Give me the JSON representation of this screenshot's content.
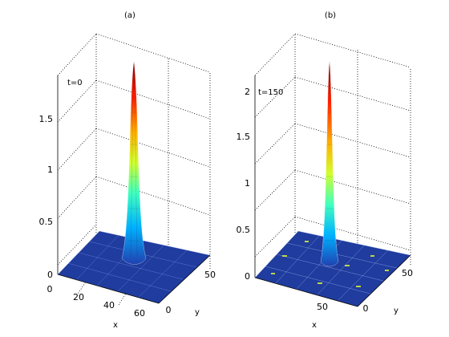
{
  "chart_data": [
    {
      "type": "surface",
      "title": "(a)",
      "annotation": "t=0",
      "xlabel": "x",
      "ylabel": "y",
      "z_ticks": [
        "0",
        "0.5",
        "1",
        "1.5"
      ],
      "x_ticks": [
        "0",
        "20",
        "40",
        "60"
      ],
      "y_ticks": [
        "0",
        "50"
      ],
      "zlim": [
        0,
        1.9
      ],
      "peak": 1.85,
      "colors": {
        "floor": "#1f3c9e",
        "mesh": "#ffffff",
        "peak": "#7a0000"
      }
    },
    {
      "type": "surface",
      "title": "(b)",
      "annotation": "t=150",
      "xlabel": "x",
      "ylabel": "y",
      "z_ticks": [
        "0",
        "0.5",
        "1",
        "1.5",
        "2"
      ],
      "x_ticks": [
        "50",
        "0"
      ],
      "y_ticks": [
        "50"
      ],
      "zlim": [
        0,
        2.2
      ],
      "peak": 2.2,
      "colors": {
        "floor": "#1f3c9e",
        "mesh": "#ffffff",
        "peak": "#7a0000"
      }
    }
  ]
}
